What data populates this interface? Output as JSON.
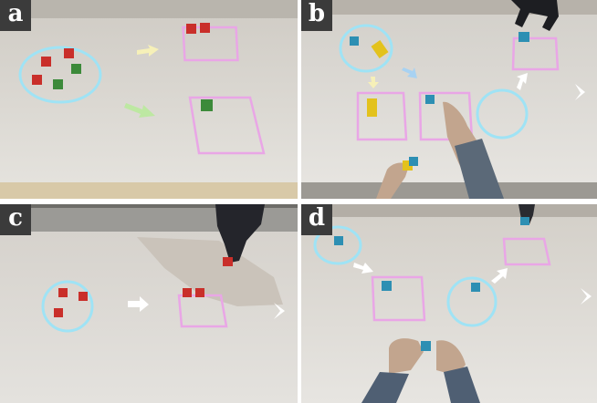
{
  "panels": [
    {
      "id": "a",
      "label": "a"
    },
    {
      "id": "b",
      "label": "b"
    },
    {
      "id": "c",
      "label": "c"
    },
    {
      "id": "d",
      "label": "d"
    }
  ],
  "colors": {
    "cube_red": "#c92f2a",
    "cube_green": "#3c8a3a",
    "cube_blue": "#2d8fb3",
    "cube_yellow": "#e3c21c",
    "projected_circle": "#9fe3f5",
    "projected_zone": "#e9a6e6",
    "arrow_light": "#f6f0b8",
    "arrow_green": "#bde8a2",
    "arrow_blue": "#a8d2f2",
    "arrow_white": "#ffffff"
  }
}
